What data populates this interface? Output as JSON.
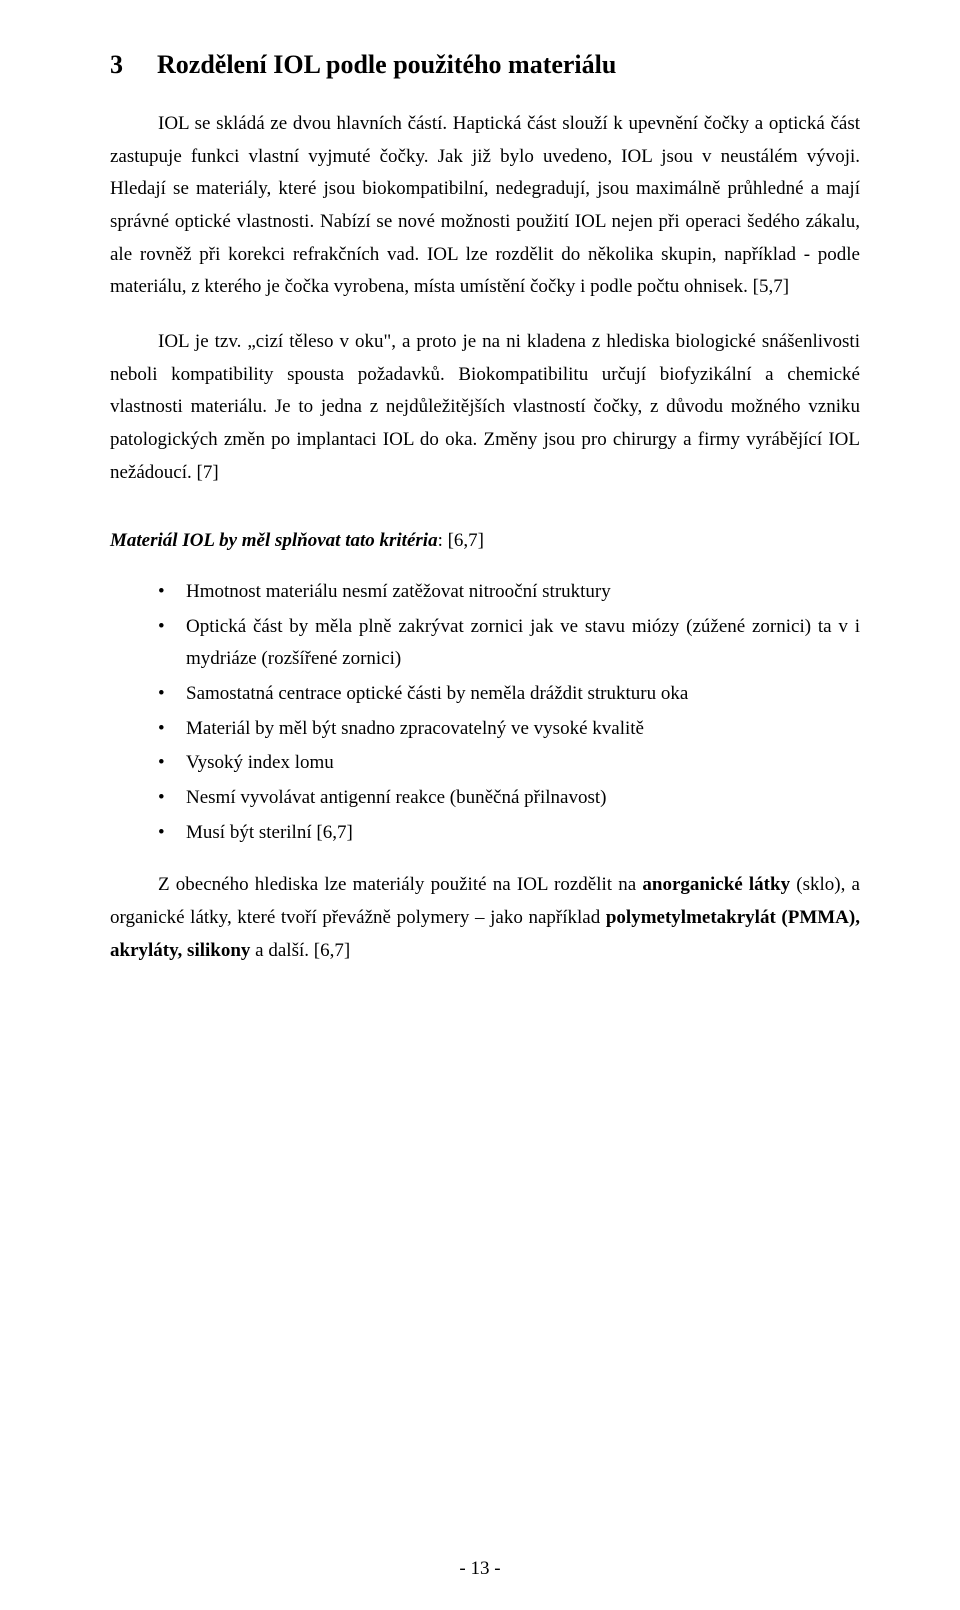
{
  "heading": {
    "number": "3",
    "title": "Rozdělení IOL podle použitého materiálu"
  },
  "paragraphs": {
    "p1": "IOL se skládá ze dvou hlavních částí. Haptická část slouží k upevnění čočky a optická část zastupuje funkci vlastní vyjmuté čočky. Jak již bylo uvedeno, IOL jsou v neustálém vývoji. Hledají se materiály, které jsou biokompatibilní, nedegradují, jsou maximálně průhledné a mají správné optické vlastnosti. Nabízí se nové možnosti použití IOL nejen při operaci šedého zákalu, ale rovněž při korekci refrakčních vad. IOL lze rozdělit do několika skupin, například - podle materiálu, z kterého je čočka vyrobena, místa umístění čočky i podle počtu ohnisek. [5,7]",
    "p2": "IOL je tzv. „cizí těleso v oku\", a proto je na ni kladena z hlediska biologické snášenlivosti neboli kompatibility spousta požadavků. Biokompatibilitu určují biofyzikální a chemické vlastnosti materiálu. Je to jedna z nejdůležitějších vlastností čočky, z důvodu možného vzniku patologických změn po implantaci IOL do oka. Změny jsou pro chirurgy a firmy vyrábějící IOL nežádoucí. [7]"
  },
  "subtitle": {
    "bold_italic": "Materiál IOL by měl splňovat tato kritéria",
    "suffix": ": [6,7]"
  },
  "bullets": [
    "Hmotnost materiálu nesmí zatěžovat nitrooční struktury",
    "Optická část by měla plně zakrývat zornici jak ve stavu miózy (zúžené zornici) ta v i mydriáze (rozšířené zornici)",
    "Samostatná centrace optické části by neměla dráždit strukturu oka",
    "Materiál by měl být snadno zpracovatelný ve vysoké kvalitě",
    "Vysoký index lomu",
    "Nesmí vyvolávat antigenní reakce (buněčná přilnavost)",
    "Musí být sterilní [6,7]"
  ],
  "closing": {
    "pre": "Z obecného hlediska lze materiály použité na IOL rozdělit na ",
    "bold1": "anorganické látky",
    "mid1": " (sklo), a organické látky, které tvoří převážně polymery – jako například ",
    "bold2": "polymetylmetakrylát (PMMA), akryláty, silikony",
    "mid2": " a další. [6,7]"
  },
  "pageNumber": "- 13 -"
}
